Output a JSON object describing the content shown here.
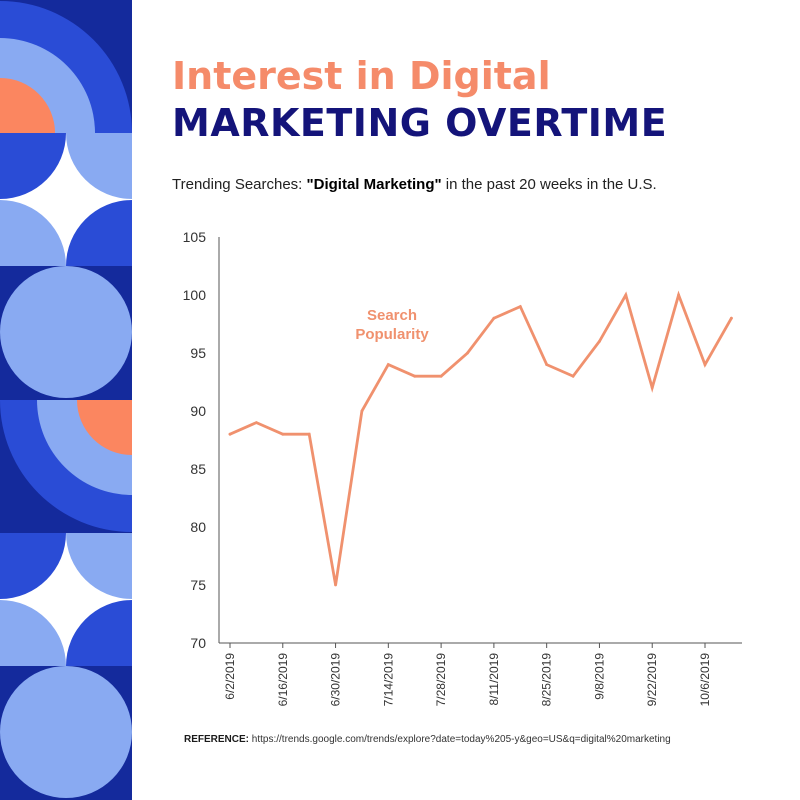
{
  "title": {
    "line1": "Interest in Digital",
    "line2": "MARKETING OVERTIME"
  },
  "subtitle": {
    "prefix": "Trending Searches: ",
    "highlight": "\"Digital Marketing\"",
    "suffix": " in the past 20 weeks in the U.S."
  },
  "reference": {
    "label": "REFERENCE:",
    "url": " https://trends.google.com/trends/explore?date=today%205-y&geo=US&q=digital%20marketing"
  },
  "colors": {
    "title_accent": "#F58B6A",
    "title_primary": "#14147A",
    "series": "#F0916E",
    "axis": "#555555",
    "decor_navy": "#142A9C",
    "decor_blue": "#2A4CD6",
    "decor_light": "#89AAF2",
    "decor_orange": "#FB8660"
  },
  "chart_data": {
    "type": "line",
    "title": "",
    "xlabel": "",
    "ylabel": "",
    "ylim": [
      70,
      105
    ],
    "yticks": [
      70,
      75,
      80,
      85,
      90,
      95,
      100,
      105
    ],
    "grid": false,
    "x": [
      "6/2/2019",
      "6/9/2019",
      "6/16/2019",
      "6/23/2019",
      "6/30/2019",
      "7/7/2019",
      "7/14/2019",
      "7/21/2019",
      "7/28/2019",
      "8/4/2019",
      "8/11/2019",
      "8/18/2019",
      "8/25/2019",
      "9/1/2019",
      "9/8/2019",
      "9/15/2019",
      "9/22/2019",
      "9/29/2019",
      "10/6/2019",
      "10/13/2019"
    ],
    "x_tick_labels": [
      "6/2/2019",
      "6/16/2019",
      "6/30/2019",
      "7/14/2019",
      "7/28/2019",
      "8/11/2019",
      "8/25/2019",
      "9/8/2019",
      "9/22/2019",
      "10/6/2019"
    ],
    "series": [
      {
        "name": "Search Popularity",
        "values": [
          88,
          89,
          88,
          88,
          75,
          90,
          94,
          93,
          93,
          95,
          98,
          99,
          94,
          93,
          96,
          100,
          92,
          100,
          94,
          98
        ]
      }
    ],
    "annotation": {
      "line1": "Search",
      "line2": "Popularity"
    }
  }
}
